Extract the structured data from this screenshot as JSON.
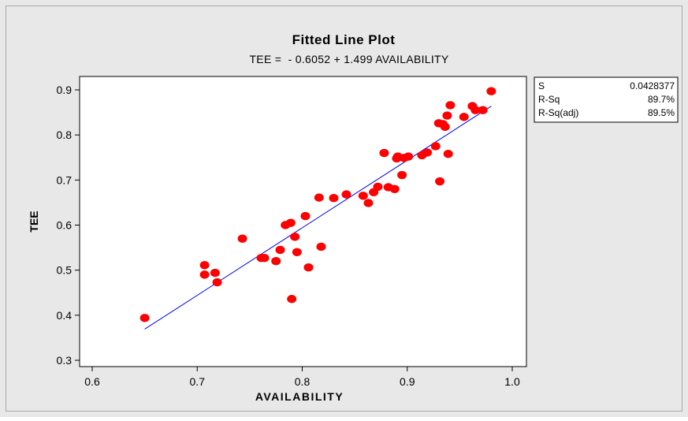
{
  "chart_data": {
    "type": "scatter",
    "title": "Fitted Line Plot",
    "subtitle": "TEE =  - 0.6052 + 1.499 AVAILABILITY",
    "xlabel": "AVAILABILITY",
    "ylabel": "TEE",
    "xlim": [
      0.6,
      1.0
    ],
    "ylim": [
      0.3,
      0.9
    ],
    "xticks": [
      "0.6",
      "0.7",
      "0.8",
      "0.9",
      "1.0"
    ],
    "yticks": [
      "0.3",
      "0.4",
      "0.5",
      "0.6",
      "0.7",
      "0.8",
      "0.9"
    ],
    "grid": false,
    "colors": {
      "points": "#ff0000",
      "line": "#0000ff",
      "background": "#e8e8e8",
      "plot": "#ffffff"
    },
    "fit": {
      "intercept": -0.6052,
      "slope": 1.499,
      "x_range": [
        0.65,
        0.98
      ]
    },
    "stats": [
      {
        "label": "S",
        "value": "0.0428377"
      },
      {
        "label": "R-Sq",
        "value": "89.7%"
      },
      {
        "label": "R-Sq(adj)",
        "value": "89.5%"
      }
    ],
    "points": [
      {
        "x": 0.65,
        "y": 0.394
      },
      {
        "x": 0.707,
        "y": 0.511
      },
      {
        "x": 0.707,
        "y": 0.49
      },
      {
        "x": 0.717,
        "y": 0.494
      },
      {
        "x": 0.719,
        "y": 0.473
      },
      {
        "x": 0.743,
        "y": 0.57
      },
      {
        "x": 0.761,
        "y": 0.527
      },
      {
        "x": 0.764,
        "y": 0.527
      },
      {
        "x": 0.775,
        "y": 0.52
      },
      {
        "x": 0.779,
        "y": 0.545
      },
      {
        "x": 0.784,
        "y": 0.6
      },
      {
        "x": 0.789,
        "y": 0.605
      },
      {
        "x": 0.793,
        "y": 0.574
      },
      {
        "x": 0.795,
        "y": 0.54
      },
      {
        "x": 0.79,
        "y": 0.436
      },
      {
        "x": 0.803,
        "y": 0.62
      },
      {
        "x": 0.806,
        "y": 0.506
      },
      {
        "x": 0.816,
        "y": 0.661
      },
      {
        "x": 0.818,
        "y": 0.552
      },
      {
        "x": 0.83,
        "y": 0.66
      },
      {
        "x": 0.842,
        "y": 0.668
      },
      {
        "x": 0.858,
        "y": 0.665
      },
      {
        "x": 0.863,
        "y": 0.649
      },
      {
        "x": 0.868,
        "y": 0.673
      },
      {
        "x": 0.872,
        "y": 0.685
      },
      {
        "x": 0.878,
        "y": 0.76
      },
      {
        "x": 0.882,
        "y": 0.684
      },
      {
        "x": 0.888,
        "y": 0.68
      },
      {
        "x": 0.89,
        "y": 0.748
      },
      {
        "x": 0.891,
        "y": 0.752
      },
      {
        "x": 0.895,
        "y": 0.711
      },
      {
        "x": 0.897,
        "y": 0.749
      },
      {
        "x": 0.901,
        "y": 0.752
      },
      {
        "x": 0.914,
        "y": 0.755
      },
      {
        "x": 0.919,
        "y": 0.761
      },
      {
        "x": 0.927,
        "y": 0.775
      },
      {
        "x": 0.93,
        "y": 0.826
      },
      {
        "x": 0.931,
        "y": 0.697
      },
      {
        "x": 0.934,
        "y": 0.824
      },
      {
        "x": 0.936,
        "y": 0.818
      },
      {
        "x": 0.938,
        "y": 0.843
      },
      {
        "x": 0.939,
        "y": 0.758
      },
      {
        "x": 0.941,
        "y": 0.866
      },
      {
        "x": 0.954,
        "y": 0.84
      },
      {
        "x": 0.962,
        "y": 0.864
      },
      {
        "x": 0.965,
        "y": 0.855
      },
      {
        "x": 0.972,
        "y": 0.855
      },
      {
        "x": 0.98,
        "y": 0.897
      }
    ]
  }
}
